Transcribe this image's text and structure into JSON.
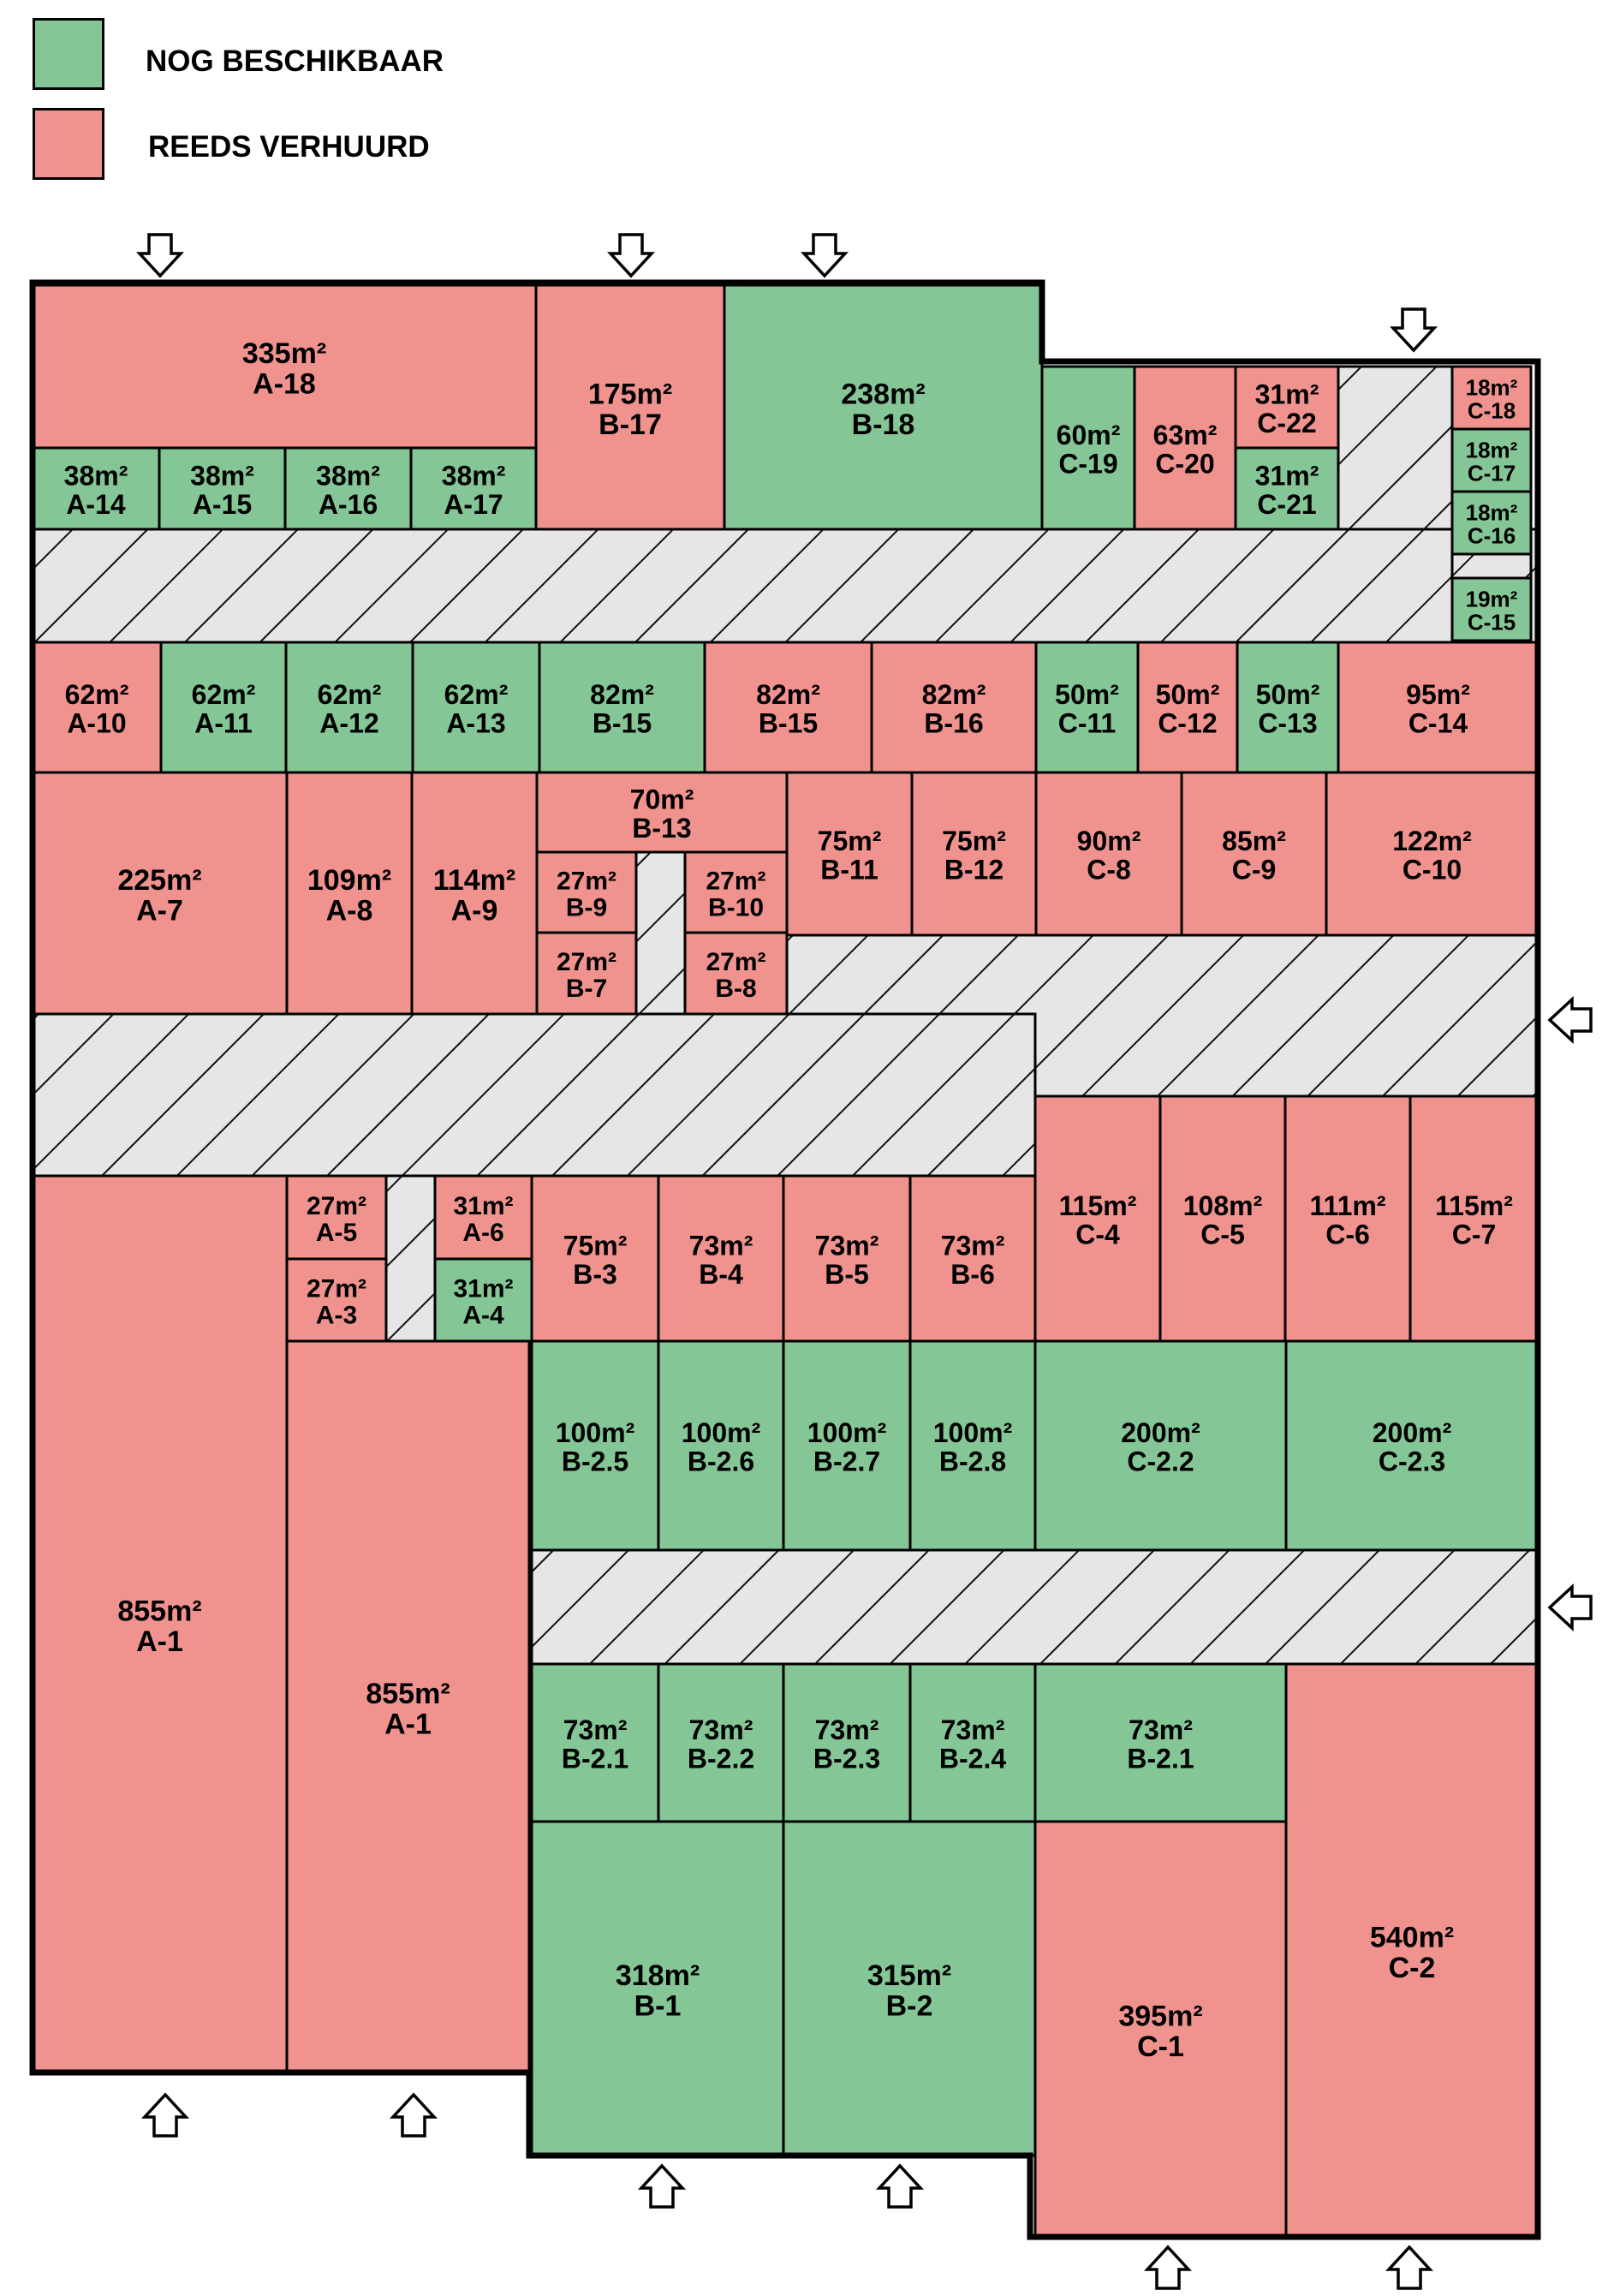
{
  "legend": {
    "available_label": "NOG BESCHIKBAAR",
    "rented_label": "REEDS VERHUURD",
    "available_color": "#84c696",
    "rented_color": "#f0938f",
    "corridor_color": "#e6e6e6"
  },
  "units": [
    {
      "id": "A-18",
      "area": "335m²",
      "status": "rented"
    },
    {
      "id": "B-17",
      "area": "175m²",
      "status": "rented"
    },
    {
      "id": "B-18",
      "area": "238m²",
      "status": "available"
    },
    {
      "id": "A-14",
      "area": "38m²",
      "status": "available"
    },
    {
      "id": "A-15",
      "area": "38m²",
      "status": "available"
    },
    {
      "id": "A-16",
      "area": "38m²",
      "status": "available"
    },
    {
      "id": "A-17",
      "area": "38m²",
      "status": "available"
    },
    {
      "id": "C-19",
      "area": "60m²",
      "status": "available"
    },
    {
      "id": "C-20",
      "area": "63m²",
      "status": "rented"
    },
    {
      "id": "C-22",
      "area": "31m²",
      "status": "rented"
    },
    {
      "id": "C-21",
      "area": "31m²",
      "status": "available"
    },
    {
      "id": "C-18",
      "area": "18m²",
      "status": "rented"
    },
    {
      "id": "C-17",
      "area": "18m²",
      "status": "available"
    },
    {
      "id": "C-16",
      "area": "18m²",
      "status": "available"
    },
    {
      "id": "C-15",
      "area": "19m²",
      "status": "available"
    },
    {
      "id": "A-10",
      "area": "62m²",
      "status": "rented"
    },
    {
      "id": "A-11",
      "area": "62m²",
      "status": "available"
    },
    {
      "id": "A-12",
      "area": "62m²",
      "status": "available"
    },
    {
      "id": "A-13",
      "area": "62m²",
      "status": "available"
    },
    {
      "id": "B-15",
      "area": "82m²",
      "status": "available"
    },
    {
      "id": "B-15",
      "area": "82m²",
      "status": "rented"
    },
    {
      "id": "B-16",
      "area": "82m²",
      "status": "rented"
    },
    {
      "id": "C-11",
      "area": "50m²",
      "status": "available"
    },
    {
      "id": "C-12",
      "area": "50m²",
      "status": "rented"
    },
    {
      "id": "C-13",
      "area": "50m²",
      "status": "available"
    },
    {
      "id": "C-14",
      "area": "95m²",
      "status": "rented"
    },
    {
      "id": "A-7",
      "area": "225m²",
      "status": "rented"
    },
    {
      "id": "A-8",
      "area": "109m²",
      "status": "rented"
    },
    {
      "id": "A-9",
      "area": "114m²",
      "status": "rented"
    },
    {
      "id": "B-13",
      "area": "70m²",
      "status": "rented"
    },
    {
      "id": "B-9",
      "area": "27m²",
      "status": "rented"
    },
    {
      "id": "B-10",
      "area": "27m²",
      "status": "rented"
    },
    {
      "id": "B-7",
      "area": "27m²",
      "status": "rented"
    },
    {
      "id": "B-8",
      "area": "27m²",
      "status": "rented"
    },
    {
      "id": "B-11",
      "area": "75m²",
      "status": "rented"
    },
    {
      "id": "B-12",
      "area": "75m²",
      "status": "rented"
    },
    {
      "id": "C-8",
      "area": "90m²",
      "status": "rented"
    },
    {
      "id": "C-9",
      "area": "85m²",
      "status": "rented"
    },
    {
      "id": "C-10",
      "area": "122m²",
      "status": "rented"
    },
    {
      "id": "A-5",
      "area": "27m²",
      "status": "rented"
    },
    {
      "id": "A-3",
      "area": "27m²",
      "status": "rented"
    },
    {
      "id": "A-6",
      "area": "31m²",
      "status": "rented"
    },
    {
      "id": "A-4",
      "area": "31m²",
      "status": "available"
    },
    {
      "id": "B-3",
      "area": "75m²",
      "status": "rented"
    },
    {
      "id": "B-4",
      "area": "73m²",
      "status": "rented"
    },
    {
      "id": "B-5",
      "area": "73m²",
      "status": "rented"
    },
    {
      "id": "B-6",
      "area": "73m²",
      "status": "rented"
    },
    {
      "id": "C-4",
      "area": "115m²",
      "status": "rented"
    },
    {
      "id": "C-5",
      "area": "108m²",
      "status": "rented"
    },
    {
      "id": "C-6",
      "area": "111m²",
      "status": "rented"
    },
    {
      "id": "C-7",
      "area": "115m²",
      "status": "rented"
    },
    {
      "id": "A-1",
      "area": "855m²",
      "status": "rented"
    },
    {
      "id": "A-1",
      "area": "855m²",
      "status": "rented"
    },
    {
      "id": "B-2.5",
      "area": "100m²",
      "status": "available"
    },
    {
      "id": "B-2.6",
      "area": "100m²",
      "status": "available"
    },
    {
      "id": "B-2.7",
      "area": "100m²",
      "status": "available"
    },
    {
      "id": "B-2.8",
      "area": "100m²",
      "status": "available"
    },
    {
      "id": "C-2.2",
      "area": "200m²",
      "status": "available"
    },
    {
      "id": "C-2.3",
      "area": "200m²",
      "status": "available"
    },
    {
      "id": "B-2.1",
      "area": "73m²",
      "status": "available"
    },
    {
      "id": "B-2.2",
      "area": "73m²",
      "status": "available"
    },
    {
      "id": "B-2.3",
      "area": "73m²",
      "status": "available"
    },
    {
      "id": "B-2.4",
      "area": "73m²",
      "status": "available"
    },
    {
      "id": "B-2.1",
      "area": "73m²",
      "status": "available"
    },
    {
      "id": "B-1",
      "area": "318m²",
      "status": "available"
    },
    {
      "id": "B-2",
      "area": "315m²",
      "status": "available"
    },
    {
      "id": "C-1",
      "area": "395m²",
      "status": "rented"
    },
    {
      "id": "C-2",
      "area": "540m²",
      "status": "rented"
    }
  ],
  "entrances": [
    {
      "direction": "down"
    },
    {
      "direction": "down"
    },
    {
      "direction": "down"
    },
    {
      "direction": "down"
    },
    {
      "direction": "left"
    },
    {
      "direction": "left"
    },
    {
      "direction": "up"
    },
    {
      "direction": "up"
    },
    {
      "direction": "up"
    },
    {
      "direction": "up"
    },
    {
      "direction": "up"
    },
    {
      "direction": "up"
    }
  ]
}
